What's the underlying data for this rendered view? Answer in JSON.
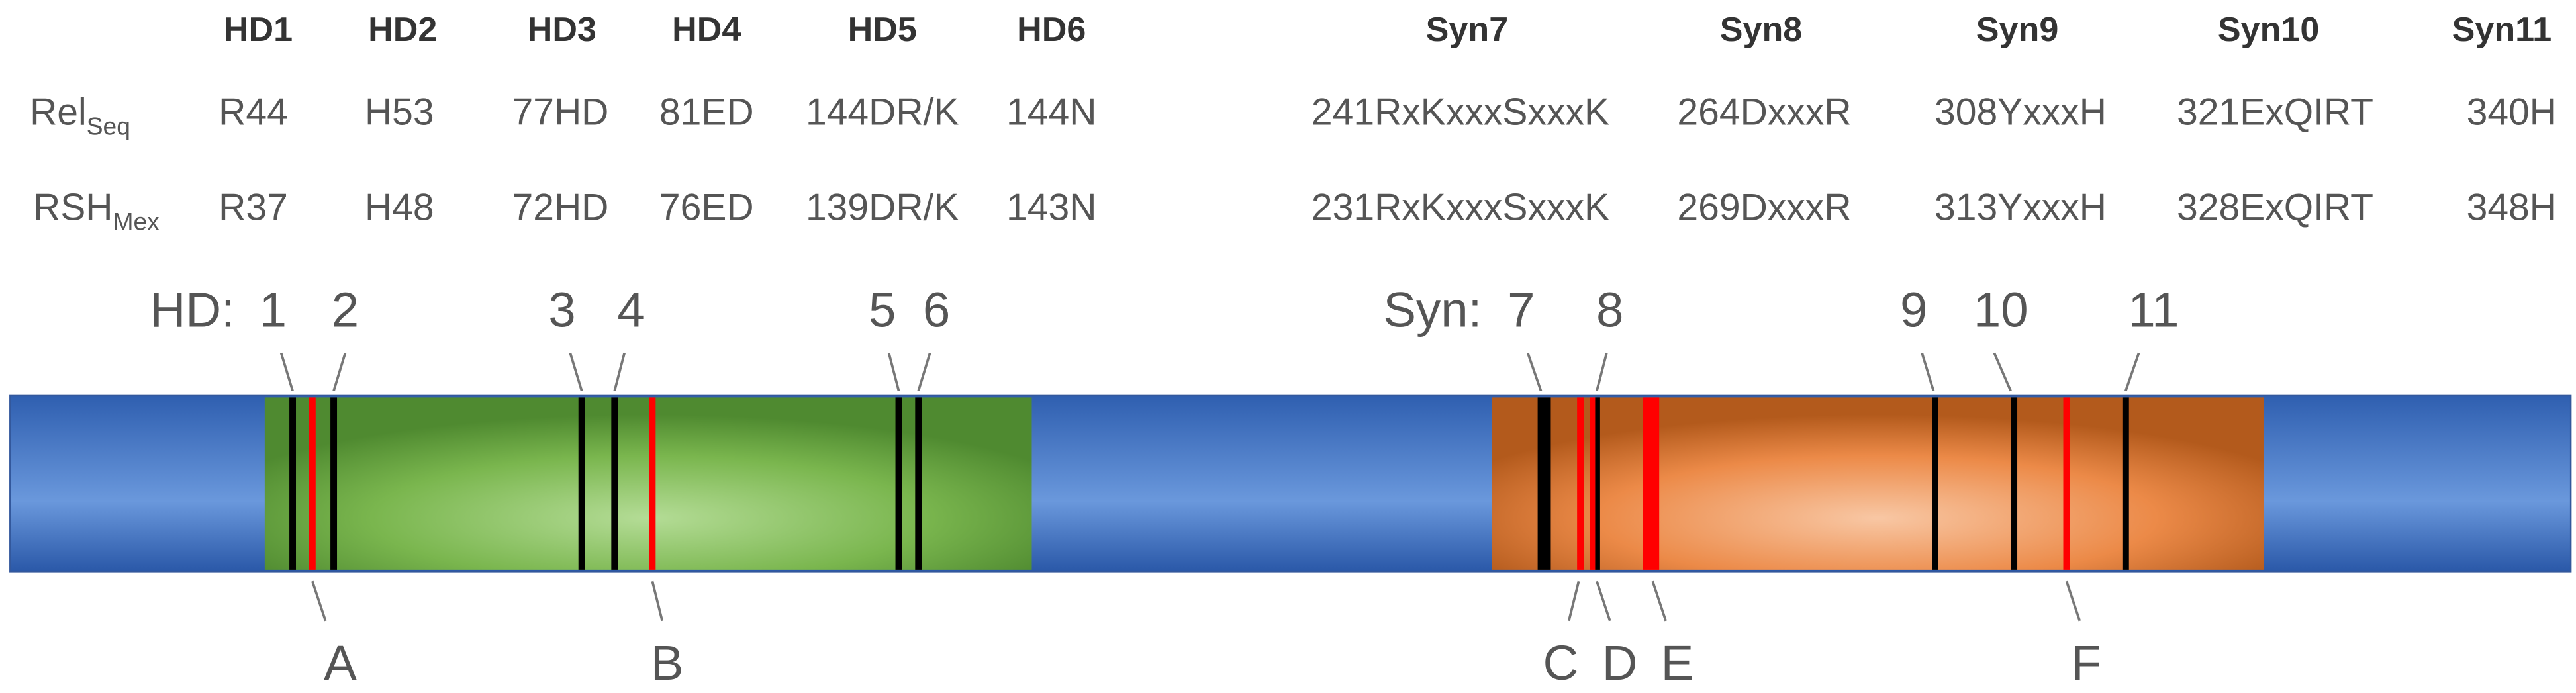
{
  "header": {
    "columns": [
      "HD1",
      "HD2",
      "HD3",
      "HD4",
      "HD5",
      "HD6",
      "Syn7",
      "Syn8",
      "Syn9",
      "Syn10",
      "Syn11"
    ]
  },
  "rows": [
    {
      "label": "Rel",
      "sub": "Seq",
      "values": [
        "R44",
        "H53",
        "77HD",
        "81ED",
        "144DR/K",
        "144N",
        "241RxKxxxSxxxK",
        "264DxxxR",
        "308YxxxH",
        "321ExQIRT",
        "340H"
      ]
    },
    {
      "label": "RSH",
      "sub": "Mex",
      "values": [
        "R37",
        "H48",
        "72HD",
        "76ED",
        "139DR/K",
        "143N",
        "231RxKxxxSxxxK",
        "269DxxxR",
        "313YxxxH",
        "328ExQIRT",
        "348H"
      ]
    }
  ],
  "diagram": {
    "hd_prefix": "HD:",
    "syn_prefix": "Syn:",
    "top_markers": [
      "1",
      "2",
      "3",
      "4",
      "5",
      "6",
      "7",
      "8",
      "9",
      "10",
      "11"
    ],
    "bottom_markers": [
      "A",
      "B",
      "C",
      "D",
      "E",
      "F"
    ]
  }
}
